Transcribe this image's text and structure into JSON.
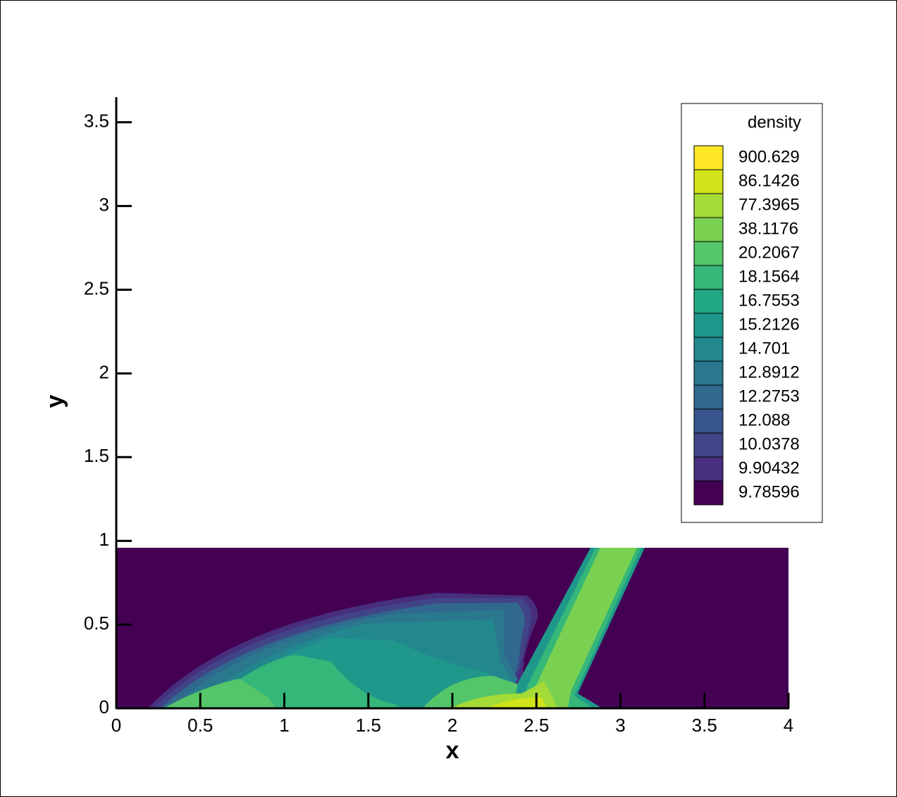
{
  "chart_data": {
    "type": "contour",
    "x_label": "x",
    "y_label": "y",
    "xlim": [
      0,
      4
    ],
    "xticks": [
      0,
      0.5,
      1,
      1.5,
      2,
      2.5,
      3,
      3.5,
      4
    ],
    "ylim": [
      0,
      3.65
    ],
    "yticks": [
      0,
      0.5,
      1,
      1.5,
      2,
      2.5,
      3,
      3.5
    ],
    "legend_title": "density",
    "levels": [
      900.629,
      86.1426,
      77.3965,
      38.1176,
      20.2067,
      18.1564,
      16.7553,
      15.2126,
      14.701,
      12.8912,
      12.2753,
      12.088,
      10.0378,
      9.90432,
      9.78596
    ],
    "colors": [
      "#fde725",
      "#d2e21b",
      "#a5db36",
      "#7ad151",
      "#54c568",
      "#35b779",
      "#22a884",
      "#1f988b",
      "#23888e",
      "#2a788e",
      "#31688e",
      "#39568c",
      "#414487",
      "#472f7d",
      "#440154"
    ]
  }
}
